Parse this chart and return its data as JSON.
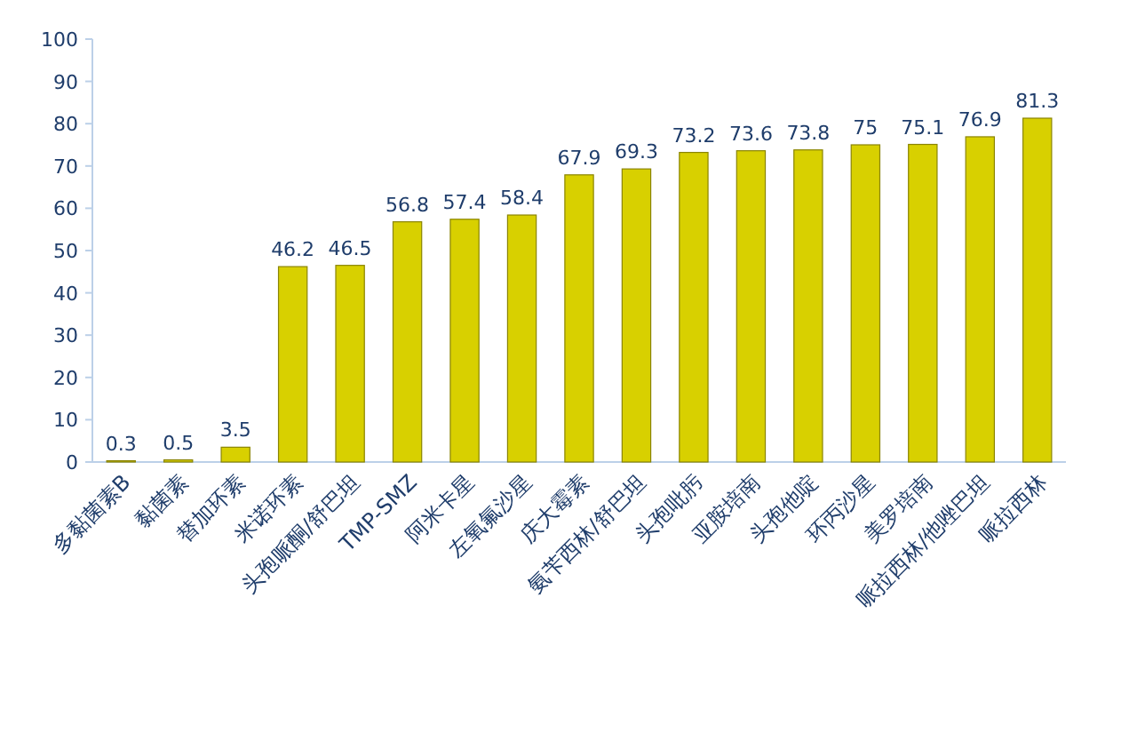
{
  "chart_data": {
    "type": "bar",
    "categories": [
      "多黏菌素B",
      "黏菌素",
      "替加环素",
      "米诺环素",
      "头孢哌酮/舒巴坦",
      "TMP-SMZ",
      "阿米卡星",
      "左氧氟沙星",
      "庆大霉素",
      "氨苄西林/舒巴坦",
      "头孢吡肟",
      "亚胺培南",
      "头孢他啶",
      "环丙沙星",
      "美罗培南",
      "哌拉西林/他唑巴坦",
      "哌拉西林"
    ],
    "values": [
      0.3,
      0.5,
      3.5,
      46.2,
      46.5,
      56.8,
      57.4,
      58.4,
      67.9,
      69.3,
      73.2,
      73.6,
      73.8,
      75,
      75.1,
      76.9,
      81.3
    ],
    "color": "#d8d000",
    "ylim": [
      0,
      100
    ],
    "yticks": [
      0,
      10,
      20,
      30,
      40,
      50,
      60,
      70,
      80,
      90,
      100
    ],
    "data_labels": true
  }
}
